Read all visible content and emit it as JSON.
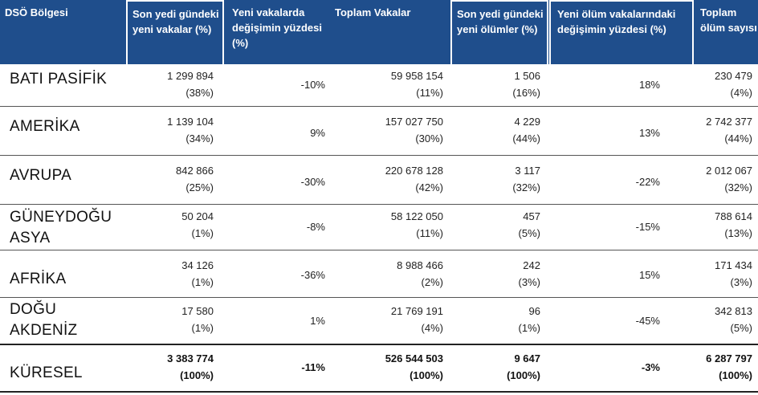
{
  "headers": [
    "DSÖ Bölgesi",
    "Son yedi gündeki yeni vakalar (%)",
    "Yeni vakalarda değişimin yüzdesi (%)",
    "Toplam Vakalar",
    "Son yedi gündeki yeni ölümler (%)",
    "Yeni ölüm vakalarındaki değişimin yüzdesi (%)",
    "Toplam ölüm sayısı"
  ],
  "rows": [
    {
      "region": "BATI PASİFİK",
      "new_cases": "1 299 894",
      "new_cases_pct": "(38%)",
      "change_cases": "-10%",
      "total_cases": "59 958 154",
      "total_cases_pct": "(11%)",
      "new_deaths": "1 506",
      "new_deaths_pct": "(16%)",
      "change_deaths": "18%",
      "total_deaths": "230 479",
      "total_deaths_pct": "(4%)"
    },
    {
      "region": "AMERİKA",
      "new_cases": "1 139 104",
      "new_cases_pct": "(34%)",
      "change_cases": "9%",
      "total_cases": "157 027 750",
      "total_cases_pct": "(30%)",
      "new_deaths": "4 229",
      "new_deaths_pct": "(44%)",
      "change_deaths": "13%",
      "total_deaths": "2 742 377",
      "total_deaths_pct": "(44%)"
    },
    {
      "region": "AVRUPA",
      "new_cases": "842 866",
      "new_cases_pct": "(25%)",
      "change_cases": "-30%",
      "total_cases": "220 678 128",
      "total_cases_pct": "(42%)",
      "new_deaths": "3 117",
      "new_deaths_pct": "(32%)",
      "change_deaths": "-22%",
      "total_deaths": "2 012 067",
      "total_deaths_pct": "(32%)"
    },
    {
      "region": "GÜNEYDOĞU ASYA",
      "new_cases": "50 204",
      "new_cases_pct": "(1%)",
      "change_cases": "-8%",
      "total_cases": "58 122 050",
      "total_cases_pct": "(11%)",
      "new_deaths": "457",
      "new_deaths_pct": "(5%)",
      "change_deaths": "-15%",
      "total_deaths": "788 614",
      "total_deaths_pct": "(13%)"
    },
    {
      "region": "AFRİKA",
      "new_cases": "34 126",
      "new_cases_pct": "(1%)",
      "change_cases": "-36%",
      "total_cases": "8 988 466",
      "total_cases_pct": "(2%)",
      "new_deaths": "242",
      "new_deaths_pct": "(3%)",
      "change_deaths": "15%",
      "total_deaths": "171 434",
      "total_deaths_pct": "(3%)"
    },
    {
      "region": "DOĞU AKDENİZ",
      "new_cases": "17 580",
      "new_cases_pct": "(1%)",
      "change_cases": "1%",
      "total_cases": "21 769 191",
      "total_cases_pct": "(4%)",
      "new_deaths": "96",
      "new_deaths_pct": "(1%)",
      "change_deaths": "-45%",
      "total_deaths": "342 813",
      "total_deaths_pct": "(5%)"
    },
    {
      "region": "KÜRESEL",
      "new_cases": "3 383 774",
      "new_cases_pct": "(100%)",
      "change_cases": "-11%",
      "total_cases": "526 544 503",
      "total_cases_pct": "(100%)",
      "new_deaths": "9 647",
      "new_deaths_pct": "(100%)",
      "change_deaths": "-3%",
      "total_deaths": "6 287 797",
      "total_deaths_pct": "(100%)"
    }
  ],
  "colors": {
    "header_bg": "#1f4e8c",
    "header_text": "#ffffff",
    "row_text": "#222222"
  }
}
